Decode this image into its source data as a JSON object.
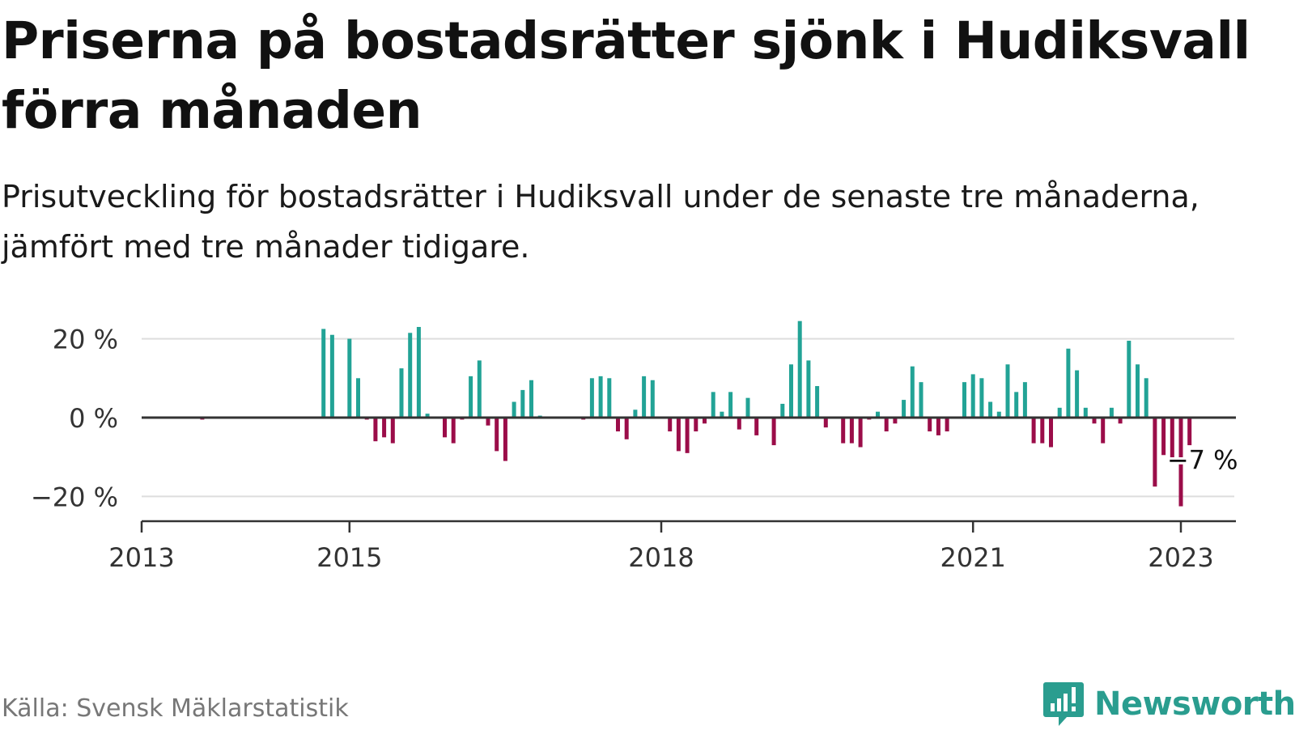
{
  "header": {
    "title": "Priserna på bostadsrätter sjönk i Hudiksvall förra månaden",
    "subtitle": "Prisutveckling för bostadsrätter i Hudiksvall under de senaste tre månaderna, jämfört med tre månader tidigare."
  },
  "footer": {
    "source": "Källa: Svensk Mäklarstatistik",
    "brand": "Newsworthy"
  },
  "colors": {
    "positive": "#22a396",
    "negative": "#9b0d49",
    "grid": "#dddddd",
    "axis": "#333333",
    "text": "#333333"
  },
  "icons": {
    "brand_logo": "bar-chart-exclamation-icon"
  },
  "chart_data": {
    "type": "bar",
    "title": "Priserna på bostadsrätter sjönk i Hudiksvall förra månaden",
    "subtitle": "Prisutveckling för bostadsrätter i Hudiksvall under de senaste tre månaderna, jämfört med tre månader tidigare.",
    "xlabel": "",
    "ylabel": "",
    "x_range": [
      "2013-01",
      "2023-06"
    ],
    "ylim": [
      -27,
      27
    ],
    "y_ticks": [
      20,
      0,
      -20
    ],
    "y_tick_labels": [
      "20 %",
      "0 %",
      "−20 %"
    ],
    "x_ticks": [
      "2013-01",
      "2015-01",
      "2018-01",
      "2021-01",
      "2023-01"
    ],
    "x_tick_labels": [
      "2013",
      "2015",
      "2018",
      "2021",
      "2023"
    ],
    "grid": true,
    "annotation": {
      "date": "2023-02",
      "value": -7,
      "label": "−7 %"
    },
    "series": [
      {
        "points": [
          [
            "2013-08",
            -0.5
          ],
          [
            "2014-10",
            22.5
          ],
          [
            "2014-11",
            21
          ],
          [
            "2015-01",
            20
          ],
          [
            "2015-02",
            10
          ],
          [
            "2015-03",
            -0.5
          ],
          [
            "2015-04",
            -6
          ],
          [
            "2015-05",
            -5
          ],
          [
            "2015-06",
            -6.5
          ],
          [
            "2015-07",
            12.5
          ],
          [
            "2015-08",
            21.5
          ],
          [
            "2015-09",
            23
          ],
          [
            "2015-10",
            1
          ],
          [
            "2015-12",
            -5
          ],
          [
            "2016-01",
            -6.5
          ],
          [
            "2016-02",
            -0.5
          ],
          [
            "2016-03",
            10.5
          ],
          [
            "2016-04",
            14.5
          ],
          [
            "2016-05",
            -2
          ],
          [
            "2016-06",
            -8.5
          ],
          [
            "2016-07",
            -11
          ],
          [
            "2016-08",
            4
          ],
          [
            "2016-09",
            7
          ],
          [
            "2016-10",
            9.5
          ],
          [
            "2016-11",
            0.5
          ],
          [
            "2017-04",
            -0.5
          ],
          [
            "2017-05",
            10
          ],
          [
            "2017-06",
            10.5
          ],
          [
            "2017-07",
            10
          ],
          [
            "2017-08",
            -3.5
          ],
          [
            "2017-09",
            -5.5
          ],
          [
            "2017-10",
            2
          ],
          [
            "2017-11",
            10.5
          ],
          [
            "2017-12",
            9.5
          ],
          [
            "2018-02",
            -3.5
          ],
          [
            "2018-03",
            -8.5
          ],
          [
            "2018-04",
            -9
          ],
          [
            "2018-05",
            -3.5
          ],
          [
            "2018-06",
            -1.5
          ],
          [
            "2018-07",
            6.5
          ],
          [
            "2018-08",
            1.5
          ],
          [
            "2018-09",
            6.5
          ],
          [
            "2018-10",
            -3
          ],
          [
            "2018-11",
            5
          ],
          [
            "2018-12",
            -4.5
          ],
          [
            "2019-02",
            -7
          ],
          [
            "2019-03",
            3.5
          ],
          [
            "2019-04",
            13.5
          ],
          [
            "2019-05",
            24.5
          ],
          [
            "2019-06",
            14.5
          ],
          [
            "2019-07",
            8
          ],
          [
            "2019-08",
            -2.5
          ],
          [
            "2019-10",
            -6.5
          ],
          [
            "2019-11",
            -6.5
          ],
          [
            "2019-12",
            -7.5
          ],
          [
            "2020-01",
            -0.5
          ],
          [
            "2020-02",
            1.5
          ],
          [
            "2020-03",
            -3.5
          ],
          [
            "2020-04",
            -1.5
          ],
          [
            "2020-05",
            4.5
          ],
          [
            "2020-06",
            13
          ],
          [
            "2020-07",
            9
          ],
          [
            "2020-08",
            -3.5
          ],
          [
            "2020-09",
            -4.5
          ],
          [
            "2020-10",
            -3.5
          ],
          [
            "2020-12",
            9
          ],
          [
            "2021-01",
            11
          ],
          [
            "2021-02",
            10
          ],
          [
            "2021-03",
            4
          ],
          [
            "2021-04",
            1.5
          ],
          [
            "2021-05",
            13.5
          ],
          [
            "2021-06",
            6.5
          ],
          [
            "2021-07",
            9
          ],
          [
            "2021-08",
            -6.5
          ],
          [
            "2021-09",
            -6.5
          ],
          [
            "2021-10",
            -7.5
          ],
          [
            "2021-11",
            2.5
          ],
          [
            "2021-12",
            17.5
          ],
          [
            "2022-01",
            12
          ],
          [
            "2022-02",
            2.5
          ],
          [
            "2022-03",
            -1.5
          ],
          [
            "2022-04",
            -6.5
          ],
          [
            "2022-05",
            2.5
          ],
          [
            "2022-06",
            -1.5
          ],
          [
            "2022-07",
            19.5
          ],
          [
            "2022-08",
            13.5
          ],
          [
            "2022-09",
            10
          ],
          [
            "2022-10",
            -17.5
          ],
          [
            "2022-11",
            -9.5
          ],
          [
            "2022-12",
            -10.5
          ],
          [
            "2023-01",
            -22.5
          ],
          [
            "2023-02",
            -7
          ]
        ]
      }
    ]
  }
}
